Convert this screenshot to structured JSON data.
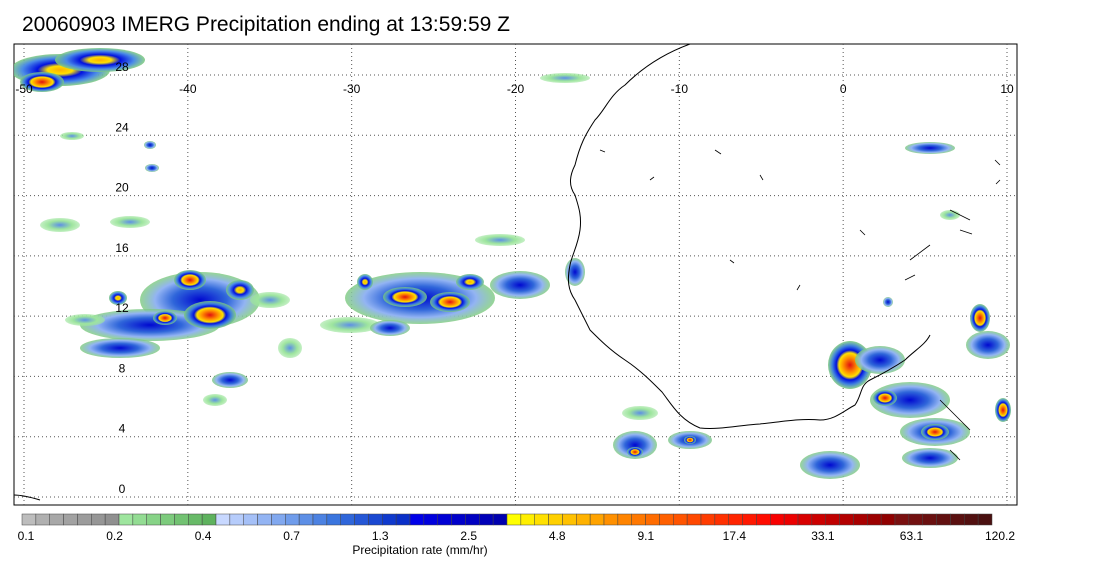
{
  "title": "20060903 IMERG Precipitation ending at 13:59:59 Z",
  "map": {
    "lon_range": [
      -50,
      10
    ],
    "lat_range": [
      0,
      30
    ],
    "lon_labels": [
      "-50",
      "-40",
      "-30",
      "-20",
      "-10",
      "0",
      "10"
    ],
    "lat_labels": [
      "28",
      "24",
      "20",
      "16",
      "12",
      "8",
      "4",
      "0"
    ],
    "gridlines": "dotted",
    "coastline_color": "#000000"
  },
  "colorbar": {
    "title": "Precipitation rate (mm/hr)",
    "labels": [
      "0.1",
      "0.2",
      "0.4",
      "0.7",
      "1.3",
      "2.5",
      "4.8",
      "9.1",
      "17.4",
      "33.1",
      "63.1",
      "120.2"
    ],
    "colors": [
      "#bdbdbd",
      "#b0b0b0",
      "#a8a8a8",
      "#a2a2a2",
      "#9c9c9c",
      "#969696",
      "#909090",
      "#9ee59e",
      "#93dc93",
      "#87d387",
      "#7dcb7d",
      "#72c272",
      "#68ba68",
      "#5eb25e",
      "#c8d8ff",
      "#b6ccfb",
      "#a5c0f7",
      "#93b4f3",
      "#81a8ef",
      "#6f9ceb",
      "#5d8fe6",
      "#4c82e2",
      "#3a75de",
      "#2f66da",
      "#2557d6",
      "#1a48d1",
      "#0f39cd",
      "#0a2fc8",
      "#0000e8",
      "#0000dd",
      "#0000d4",
      "#0000ca",
      "#0000c1",
      "#0000b8",
      "#0000af",
      "#ffff00",
      "#ffef00",
      "#ffe000",
      "#ffd000",
      "#ffc100",
      "#ffb200",
      "#ffa300",
      "#ff9000",
      "#ff8400",
      "#ff7800",
      "#ff6c00",
      "#ff6000",
      "#ff5400",
      "#ff4800",
      "#ff3c00",
      "#ff3000",
      "#ff2400",
      "#ff1800",
      "#ff0c00",
      "#f80000",
      "#ec0000",
      "#d80000",
      "#cc0000",
      "#c00000",
      "#b40000",
      "#a80000",
      "#9c0000",
      "#900000",
      "#7a1010",
      "#721010",
      "#6a1010",
      "#621010",
      "#5a1010",
      "#521010",
      "#4a1010"
    ]
  }
}
